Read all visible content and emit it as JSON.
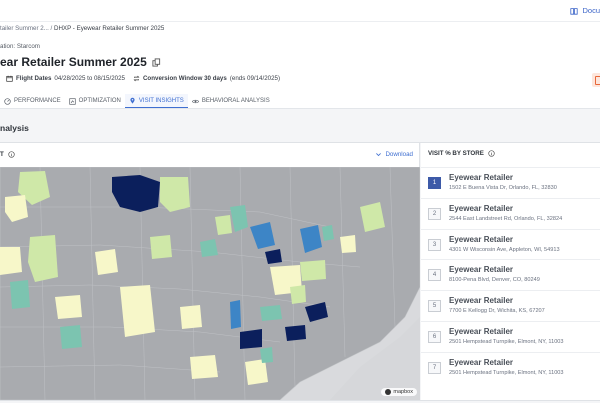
{
  "header": {
    "docs_label": "Docu",
    "breadcrumb_parent": "tailer Summer 2... /",
    "breadcrumb_current": "DHXP - Eyewear Retailer Summer 2025"
  },
  "organization": {
    "label": "ation:",
    "value": "Starcom"
  },
  "campaign": {
    "title": "ear Retailer Summer 2025",
    "flight_label": "Flight Dates",
    "flight_value": "04/28/2025 to 08/15/2025",
    "conversion_label": "Conversion Window 30 days",
    "conversion_ends": "(ends 09/14/2025)"
  },
  "tabs": [
    {
      "label": "PERFORMANCE",
      "icon": "gauge-icon"
    },
    {
      "label": "OPTIMIZATION",
      "icon": "sliders-icon"
    },
    {
      "label": "VISIT INSIGHTS",
      "icon": "map-pin-icon",
      "active": true
    },
    {
      "label": "BEHAVIORAL ANALYSIS",
      "icon": "eye-icon"
    }
  ],
  "section": {
    "title": "nalysis"
  },
  "map_panel": {
    "label": "T",
    "download_label": "Download",
    "attribution": "mapbox"
  },
  "store_panel": {
    "title": "VISIT % BY STORE",
    "stores": [
      {
        "rank": "1",
        "name": "Eyewear Retailer",
        "address": "1502 E Buena Vista Dr, Orlando, FL, 32830"
      },
      {
        "rank": "2",
        "name": "Eyewear Retailer",
        "address": "2544 East Landstreet Rd, Orlando, FL, 32824"
      },
      {
        "rank": "3",
        "name": "Eyewear Retailer",
        "address": "4301 W Wisconsin Ave, Appleton, WI, 54913"
      },
      {
        "rank": "4",
        "name": "Eyewear Retailer",
        "address": "8100-Pena Blvd, Denver, CO, 80249"
      },
      {
        "rank": "5",
        "name": "Eyewear Retailer",
        "address": "7700 E Kellogg Dr, Wichita, KS, 67207"
      },
      {
        "rank": "6",
        "name": "Eyewear Retailer",
        "address": "2501 Hempstead Turnpike, Elmont, NY, 11003"
      },
      {
        "rank": "7",
        "name": "Eyewear Retailer",
        "address": "2501 Hempstead Turnpike, Elmont, NY, 11003"
      }
    ]
  },
  "colors": {
    "accent": "#3f6fd1",
    "map_base": "#a7a9ad",
    "map_low": "#f7f7c9",
    "map_mid_low": "#cfe8a8",
    "map_mid": "#7cc4b0",
    "map_mid_high": "#3d85c6",
    "map_high": "#0b1f5c"
  }
}
